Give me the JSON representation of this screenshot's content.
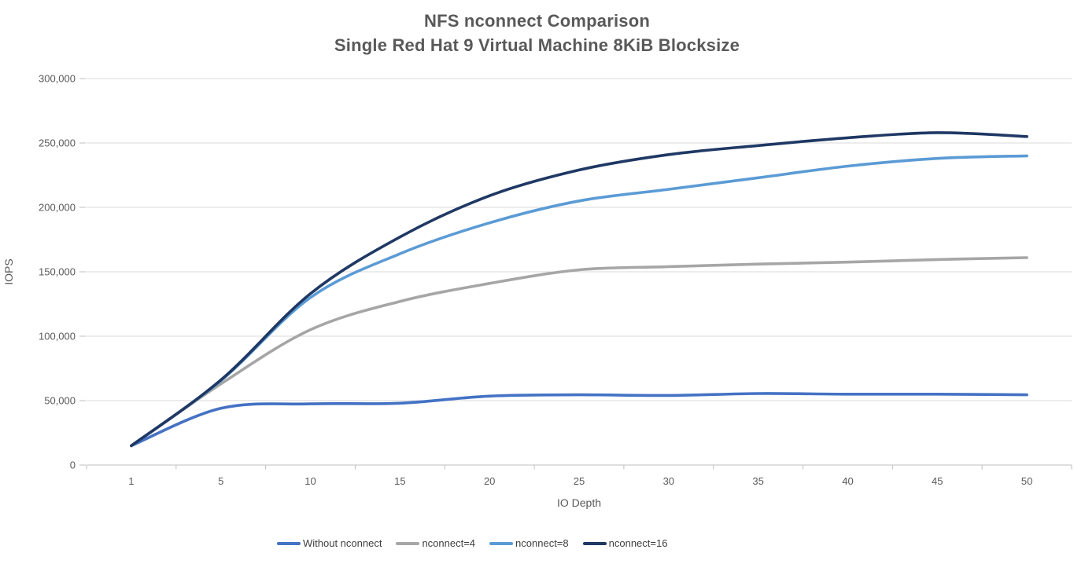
{
  "chart_data": {
    "type": "line",
    "title": "NFS nconnect Comparison",
    "subtitle": "Single Red Hat 9 Virtual Machine 8KiB Blocksize",
    "xlabel": "IO Depth",
    "ylabel": "IOPS",
    "categories": [
      1,
      5,
      10,
      15,
      20,
      25,
      30,
      35,
      40,
      45,
      50
    ],
    "series": [
      {
        "name": "Without nconnect",
        "color": "#4472C4",
        "values": [
          15000,
          44000,
          47500,
          48000,
          53500,
          54500,
          54000,
          55500,
          55000,
          55000,
          54500
        ]
      },
      {
        "name": "nconnect=4",
        "color": "#A6A6A6",
        "values": [
          15000,
          63000,
          105000,
          127000,
          141000,
          151500,
          154000,
          156000,
          157500,
          159500,
          161000
        ]
      },
      {
        "name": "nconnect=8",
        "color": "#5B9BD5",
        "values": [
          15000,
          65500,
          130000,
          164000,
          188000,
          205000,
          214000,
          223000,
          232000,
          238000,
          240000
        ]
      },
      {
        "name": "nconnect=16",
        "color": "#1F3864",
        "values": [
          15000,
          66000,
          133000,
          177000,
          209000,
          229000,
          241000,
          248000,
          254000,
          258000,
          255000
        ]
      }
    ],
    "ylim": [
      0,
      300000
    ],
    "ytick_step": 50000,
    "ytick_labels": [
      "0",
      "50,000",
      "100,000",
      "150,000",
      "200,000",
      "250,000",
      "300,000"
    ],
    "grid": true,
    "smoothed_lines": true,
    "legend_position": "bottom",
    "grid_color": "#D9D9D9",
    "axis_color": "#BFBFBF",
    "label_color": "#595959",
    "legend_text_color": "#404040",
    "title_color": "#595959",
    "background": "#FFFFFF"
  }
}
